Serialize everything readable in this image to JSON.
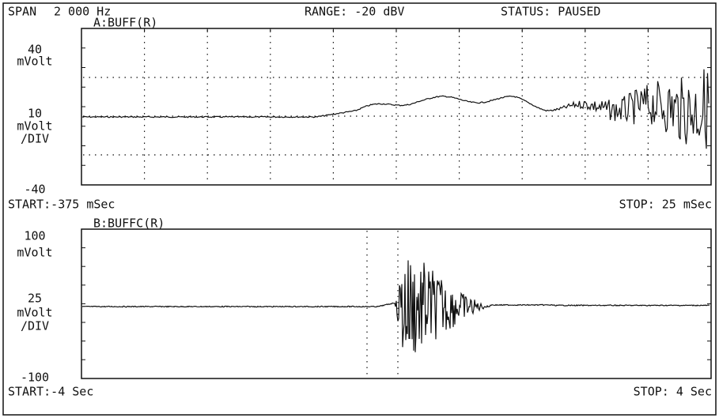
{
  "header": {
    "span": "SPAN",
    "span_value": "2 000 Hz",
    "range": "RANGE: -20 dBV",
    "status": "STATUS: PAUSED"
  },
  "traces": [
    {
      "label": "A:BUFF(R)",
      "top": "40",
      "top_unit": "mVolt",
      "scale": "10",
      "scale_unit": "mVolt",
      "per_div": "/DIV",
      "bottom": "-40",
      "start": "START:-375 mSec",
      "stop": "STOP: 25 mSec"
    },
    {
      "label": "B:BUFFC(R)",
      "top": "100",
      "top_unit": "mVolt",
      "scale": "25",
      "scale_unit": "mVolt",
      "per_div": "/DIV",
      "bottom": "-100",
      "start": "START:-4  Sec",
      "stop": "STOP: 4  Sec"
    }
  ]
}
